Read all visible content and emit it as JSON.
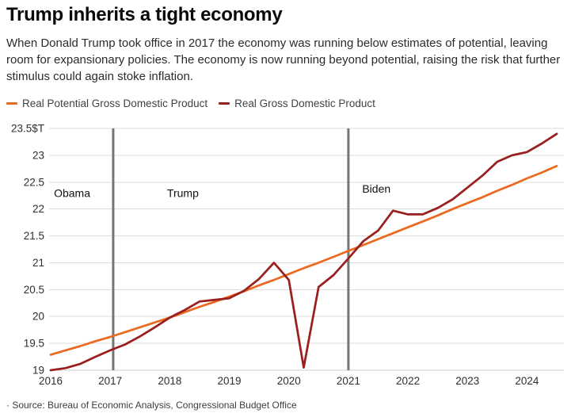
{
  "header": {
    "title": "Trump inherits a tight economy",
    "subtitle": "When Donald Trump took office in 2017 the economy was running below estimates of potential, leaving room for expansionary policies. The economy is now running beyond potential, raising the risk that further stimulus could again stoke inflation."
  },
  "source_note": "· Source: Bureau of Economic Analysis, Congressional Budget Office",
  "chart_data": {
    "type": "line",
    "title": "Trump inherits a tight economy",
    "unit": "trillions of dollars",
    "x_start": 2016,
    "x_step": 0.25,
    "x_end": 2024.5,
    "xlim": [
      2015.97,
      2024.63
    ],
    "ylim": [
      19,
      23.5
    ],
    "grid": true,
    "legend_position": "top",
    "x_ticks": [
      2016,
      2017,
      2018,
      2019,
      2020,
      2021,
      2022,
      2023,
      2024
    ],
    "y_ticks": [
      {
        "value": 19,
        "label": "19"
      },
      {
        "value": 19.5,
        "label": "19.5"
      },
      {
        "value": 20,
        "label": "20"
      },
      {
        "value": 20.5,
        "label": "20.5"
      },
      {
        "value": 21,
        "label": "21"
      },
      {
        "value": 21.5,
        "label": "21.5"
      },
      {
        "value": 22,
        "label": "22"
      },
      {
        "value": 22.5,
        "label": "22.5"
      },
      {
        "value": 23,
        "label": "23"
      },
      {
        "value": 23.5,
        "label": "23.5$T"
      }
    ],
    "series": [
      {
        "name": "Real Potential Gross Domestic Product",
        "color": "#E96A20",
        "values": [
          19.29,
          19.37,
          19.45,
          19.54,
          19.62,
          19.71,
          19.8,
          19.89,
          19.98,
          20.08,
          20.18,
          20.27,
          20.37,
          20.47,
          20.58,
          20.68,
          20.79,
          20.9,
          21.0,
          21.11,
          21.22,
          21.33,
          21.44,
          21.55,
          21.66,
          21.77,
          21.88,
          22.0,
          22.11,
          22.22,
          22.34,
          22.45,
          22.57,
          22.68,
          22.8
        ]
      },
      {
        "name": "Real Gross Domestic Product",
        "color": "#99201E",
        "values": [
          19.0,
          19.04,
          19.12,
          19.25,
          19.37,
          19.48,
          19.63,
          19.8,
          19.98,
          20.12,
          20.28,
          20.31,
          20.34,
          20.48,
          20.7,
          21.0,
          20.68,
          19.05,
          20.55,
          20.77,
          21.08,
          21.4,
          21.6,
          21.97,
          21.9,
          21.9,
          22.02,
          22.18,
          22.4,
          22.62,
          22.88,
          23.0,
          23.06,
          23.22,
          23.4
        ]
      }
    ],
    "annotations": [
      {
        "label": "Obama",
        "label_year": 2016.36,
        "label_value": 22.3,
        "line_year": null
      },
      {
        "label": "Trump",
        "label_year": 2018.22,
        "label_value": 22.3,
        "line_year": 2017.05
      },
      {
        "label": "Biden",
        "label_year": 2021.47,
        "label_value": 22.38,
        "line_year": 2021.0
      }
    ],
    "colors": {
      "grid": "#DCDCDC",
      "baseline": "#CCCCCC",
      "president_line": "#757575",
      "tick_label": "#2f2f2f",
      "annotation_label": "#111111"
    }
  }
}
